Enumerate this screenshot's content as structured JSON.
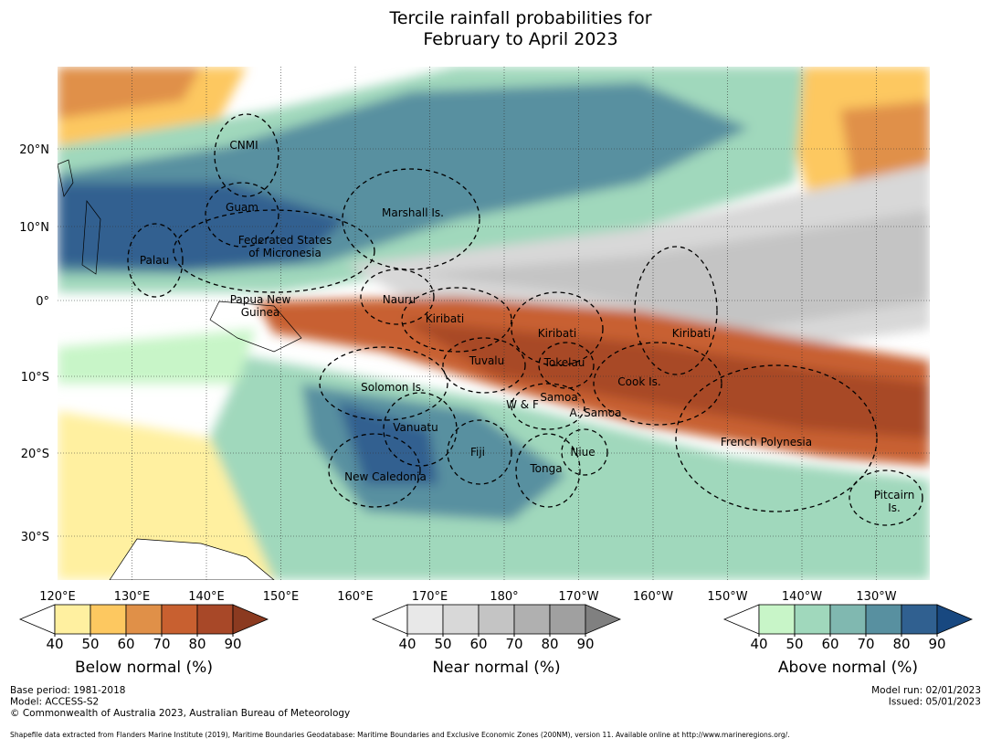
{
  "title": {
    "lines": [
      "Tercile rainfall probabilities for",
      "February to April 2023"
    ]
  },
  "map": {
    "lat_labels": [
      "20°N",
      "10°N",
      "0°",
      "10°S",
      "20°S",
      "30°S"
    ],
    "lon_labels": [
      "120°E",
      "130°E",
      "140°E",
      "150°E",
      "160°E",
      "170°E",
      "180°",
      "170°W",
      "160°W",
      "150°W",
      "140°W",
      "130°W"
    ],
    "regions": [
      {
        "lines": [
          "CNMI"
        ]
      },
      {
        "lines": [
          "Guam"
        ]
      },
      {
        "lines": [
          "Marshall Is."
        ]
      },
      {
        "lines": [
          "Federated States",
          "of Micronesia"
        ]
      },
      {
        "lines": [
          "Palau"
        ]
      },
      {
        "lines": [
          "Papua New",
          "Guinea"
        ]
      },
      {
        "lines": [
          "Nauru"
        ]
      },
      {
        "lines": [
          "Kiribati"
        ]
      },
      {
        "lines": [
          "Kiribati"
        ]
      },
      {
        "lines": [
          "Kiribati"
        ]
      },
      {
        "lines": [
          "Tuvalu"
        ]
      },
      {
        "lines": [
          "Tokelau"
        ]
      },
      {
        "lines": [
          "Cook Is."
        ]
      },
      {
        "lines": [
          "Solomon Is."
        ]
      },
      {
        "lines": [
          "W & F"
        ]
      },
      {
        "lines": [
          "Samoa"
        ]
      },
      {
        "lines": [
          "A. Samoa"
        ]
      },
      {
        "lines": [
          "Vanuatu"
        ]
      },
      {
        "lines": [
          "French Polynesia"
        ]
      },
      {
        "lines": [
          "Fiji"
        ]
      },
      {
        "lines": [
          "Niue"
        ]
      },
      {
        "lines": [
          "Tonga"
        ]
      },
      {
        "lines": [
          "New Caledonia"
        ]
      },
      {
        "lines": [
          "Pitcairn",
          "Is."
        ]
      }
    ]
  },
  "colorbars": [
    {
      "label": "Below normal (%)",
      "ticks": [
        40,
        50,
        60,
        70,
        80,
        90
      ],
      "colors": [
        "#ffffff",
        "#fff0a0",
        "#fdc860",
        "#e09048",
        "#c86030",
        "#a84828",
        "#8b3a20"
      ]
    },
    {
      "label": "Near normal (%)",
      "ticks": [
        40,
        50,
        60,
        70,
        80,
        90
      ],
      "colors": [
        "#ffffff",
        "#e8e8e8",
        "#d8d8d8",
        "#c4c4c4",
        "#b0b0b0",
        "#a0a0a0",
        "#808080"
      ]
    },
    {
      "label": "Above normal (%)",
      "ticks": [
        40,
        50,
        60,
        70,
        80,
        90
      ],
      "colors": [
        "#ffffff",
        "#c8f5c8",
        "#a0d8bc",
        "#80b8b0",
        "#5890a0",
        "#306090",
        "#184880"
      ]
    }
  ],
  "footer": {
    "left": [
      "Base period: 1981-2018",
      "Model: ACCESS-S2",
      "© Commonwealth of Australia 2023, Australian Bureau of Meteorology"
    ],
    "right": [
      "Model run: 02/01/2023",
      "Issued: 05/01/2023"
    ],
    "source": "Shapefile data extracted from Flanders Marine Institute (2019), Maritime Boundaries Geodatabase: Maritime Boundaries and Exclusive Economic Zones (200NM), version 11. Available online at http://www.marineregions.org/."
  }
}
